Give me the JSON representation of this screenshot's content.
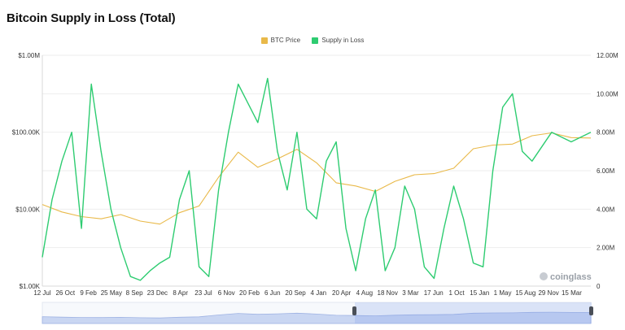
{
  "title": "Bitcoin Supply in Loss (Total)",
  "legend": [
    {
      "label": "BTC Price",
      "color": "#e9b949"
    },
    {
      "label": "Supply in Loss",
      "color": "#2ecc71"
    }
  ],
  "watermark": "coinglass",
  "chart_data": {
    "type": "line",
    "title": "Bitcoin Supply in Loss (Total)",
    "x_ticks": [
      "12 Jul",
      "26 Oct",
      "9 Feb",
      "25 May",
      "8 Sep",
      "23 Dec",
      "8 Apr",
      "23 Jul",
      "6 Nov",
      "20 Feb",
      "6 Jun",
      "20 Sep",
      "4 Jan",
      "20 Apr",
      "4 Aug",
      "18 Nov",
      "3 Mar",
      "17 Jun",
      "1 Oct",
      "15 Jan",
      "1 May",
      "15 Aug",
      "29 Nov",
      "15 Mar"
    ],
    "y_left": {
      "label": "",
      "scale": "log",
      "ticks": [
        "$1.00K",
        "$10.00K",
        "$100.00K",
        "$1.00M"
      ],
      "range": [
        1000,
        1000000
      ]
    },
    "y_right": {
      "label": "",
      "scale": "linear",
      "ticks": [
        "0",
        "2.00M",
        "4.00M",
        "6.00M",
        "8.00M",
        "10.00M",
        "12.00M"
      ],
      "range": [
        0,
        12000000
      ]
    },
    "grid": true,
    "legend_position": "top-center",
    "series": [
      {
        "name": "BTC Price",
        "axis": "left",
        "color": "#e9b949",
        "points": [
          [
            0,
            11500
          ],
          [
            1,
            9200
          ],
          [
            2,
            8000
          ],
          [
            3,
            7500
          ],
          [
            4,
            8500
          ],
          [
            5,
            7000
          ],
          [
            6,
            6400
          ],
          [
            7,
            9000
          ],
          [
            8,
            11000
          ],
          [
            9,
            26000
          ],
          [
            10,
            55000
          ],
          [
            11,
            35000
          ],
          [
            12,
            45000
          ],
          [
            13,
            60000
          ],
          [
            14,
            40000
          ],
          [
            15,
            22000
          ],
          [
            16,
            20000
          ],
          [
            17,
            17000
          ],
          [
            18,
            23000
          ],
          [
            19,
            28000
          ],
          [
            20,
            29000
          ],
          [
            21,
            34000
          ],
          [
            22,
            61000
          ],
          [
            23,
            68000
          ],
          [
            24,
            70000
          ],
          [
            25,
            90000
          ],
          [
            26,
            98000
          ],
          [
            27,
            85000
          ],
          [
            28,
            84000
          ]
        ]
      },
      {
        "name": "Supply in Loss",
        "axis": "right",
        "color": "#2ecc71",
        "points": [
          [
            0,
            1.5
          ],
          [
            0.5,
            4.5
          ],
          [
            1,
            6.5
          ],
          [
            1.5,
            8
          ],
          [
            2,
            3
          ],
          [
            2.5,
            10.5
          ],
          [
            3,
            7
          ],
          [
            3.5,
            4
          ],
          [
            4,
            2
          ],
          [
            4.5,
            0.5
          ],
          [
            5,
            0.3
          ],
          [
            5.5,
            0.8
          ],
          [
            6,
            1.2
          ],
          [
            6.5,
            1.5
          ],
          [
            7,
            4.5
          ],
          [
            7.5,
            6
          ],
          [
            8,
            1
          ],
          [
            8.5,
            0.5
          ],
          [
            9,
            5
          ],
          [
            9.5,
            8
          ],
          [
            10,
            10.5
          ],
          [
            10.5,
            9.5
          ],
          [
            11,
            8.5
          ],
          [
            11.5,
            10.8
          ],
          [
            12,
            7
          ],
          [
            12.5,
            5
          ],
          [
            13,
            8
          ],
          [
            13.5,
            4
          ],
          [
            14,
            3.5
          ],
          [
            14.5,
            6.5
          ],
          [
            15,
            7.5
          ],
          [
            15.5,
            3
          ],
          [
            16,
            0.8
          ],
          [
            16.5,
            3.5
          ],
          [
            17,
            5
          ],
          [
            17.5,
            0.8
          ],
          [
            18,
            2
          ],
          [
            18.5,
            5.2
          ],
          [
            19,
            4
          ],
          [
            19.5,
            1
          ],
          [
            20,
            0.4
          ],
          [
            20.5,
            3
          ],
          [
            21,
            5.2
          ],
          [
            21.5,
            3.5
          ],
          [
            22,
            1.2
          ],
          [
            22.5,
            1
          ],
          [
            23,
            6
          ],
          [
            23.5,
            9.3
          ],
          [
            24,
            10
          ],
          [
            24.5,
            7
          ],
          [
            25,
            6.5
          ],
          [
            26,
            8
          ],
          [
            27,
            7.5
          ],
          [
            28,
            8
          ]
        ]
      }
    ]
  }
}
